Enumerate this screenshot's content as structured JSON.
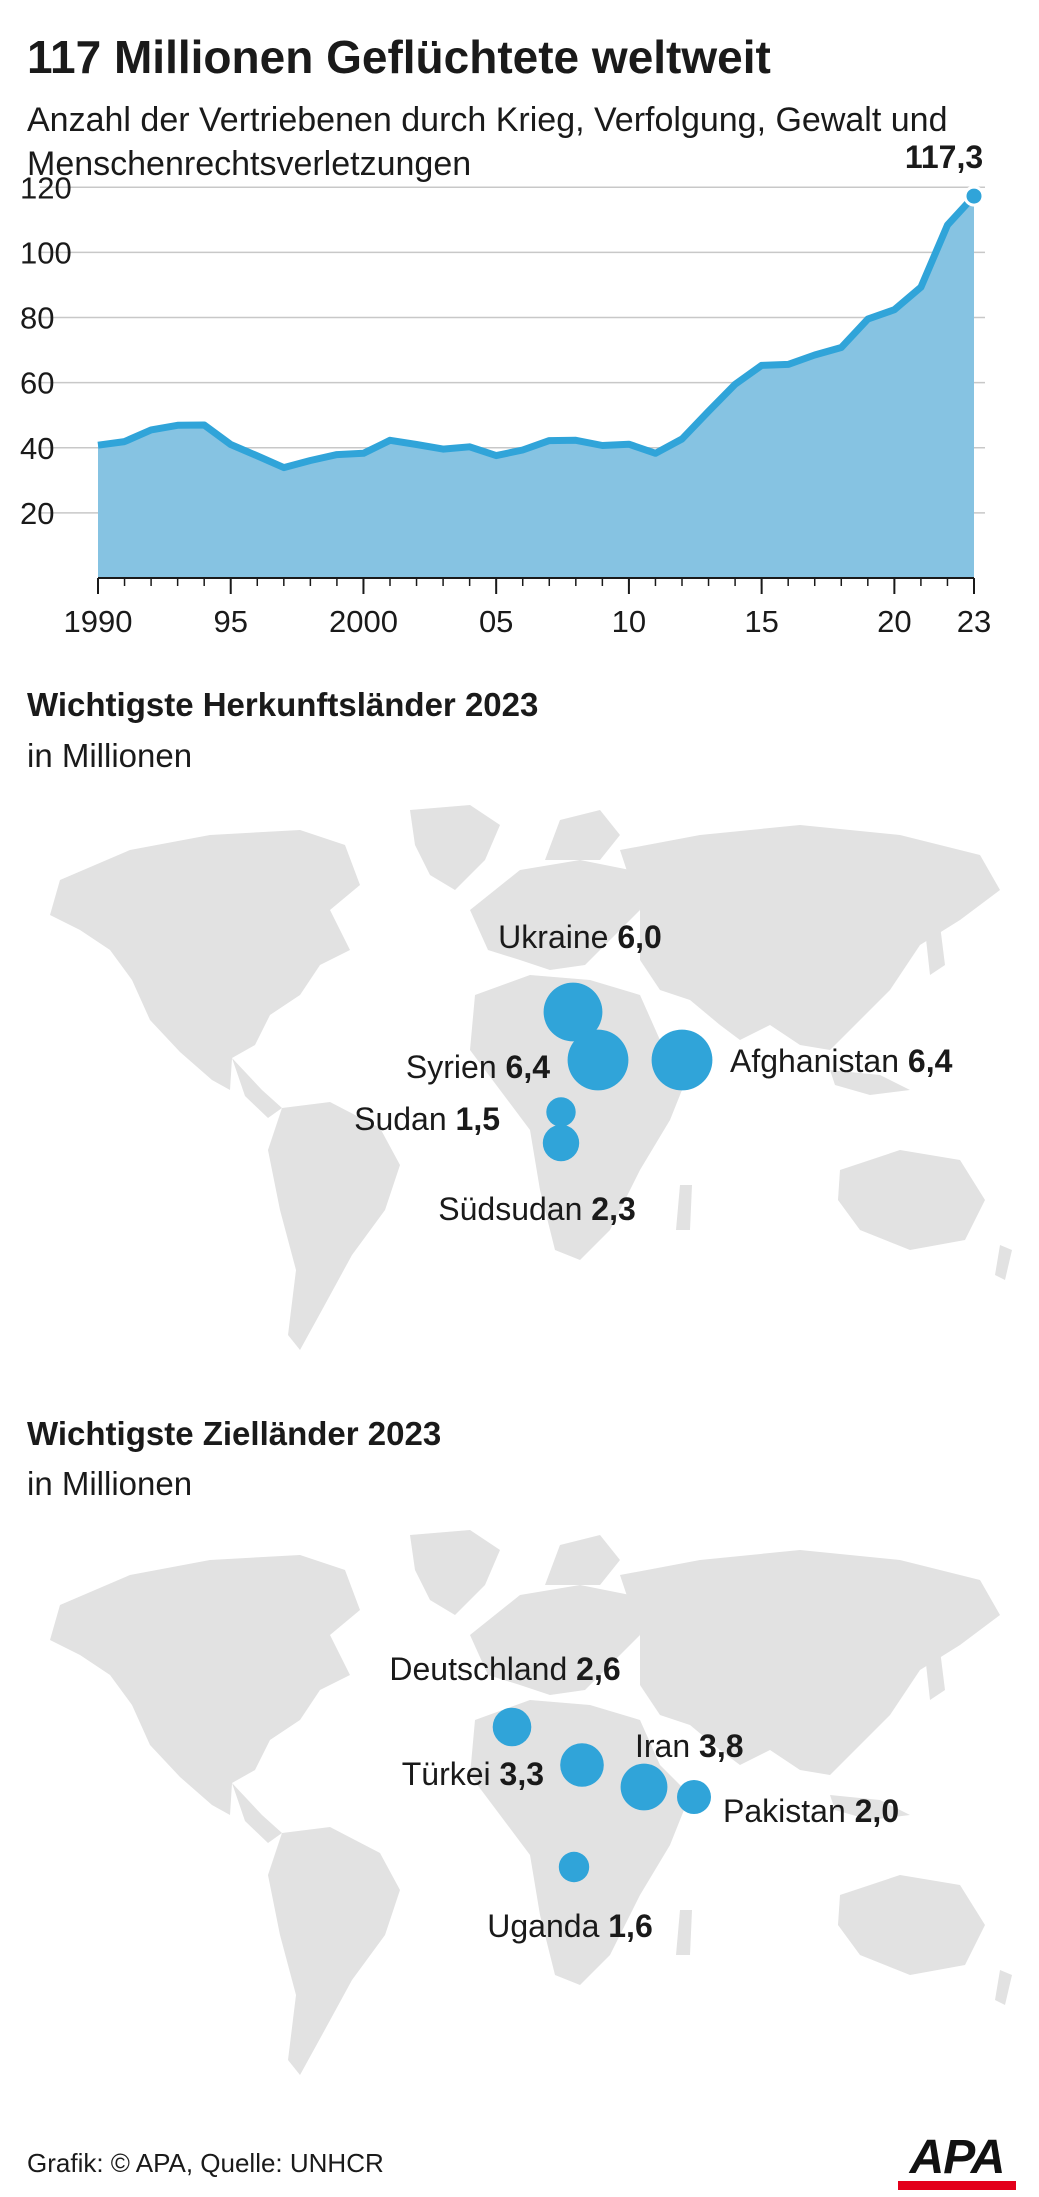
{
  "title": "117 Millionen Geflüchtete weltweit",
  "subtitle": "Anzahl der Vertriebenen durch Krieg, Verfolgung, Gewalt und Menschenrechtsverletzungen",
  "chart_data": [
    {
      "type": "area",
      "title": "117 Millionen Geflüchtete weltweit",
      "subtitle": "Anzahl der Vertriebenen durch Krieg, Verfolgung, Gewalt und Menschenrechtsverletzungen",
      "x": [
        1990,
        1991,
        1992,
        1993,
        1994,
        1995,
        1996,
        1997,
        1998,
        1999,
        2000,
        2001,
        2002,
        2003,
        2004,
        2005,
        2006,
        2007,
        2008,
        2009,
        2010,
        2011,
        2012,
        2013,
        2014,
        2015,
        2016,
        2017,
        2018,
        2019,
        2020,
        2021,
        2022,
        2023
      ],
      "values": [
        40.8,
        41.9,
        45.5,
        46.9,
        47.0,
        41.0,
        37.5,
        33.9,
        36.1,
        37.9,
        38.3,
        42.3,
        41.0,
        39.6,
        40.3,
        37.6,
        39.3,
        42.2,
        42.3,
        40.7,
        41.1,
        38.3,
        42.7,
        51.2,
        59.5,
        65.3,
        65.6,
        68.5,
        70.8,
        79.5,
        82.4,
        89.3,
        108.4,
        117.3
      ],
      "x_tick_labels": [
        {
          "x": 1990,
          "label": "1990"
        },
        {
          "x": 1995,
          "label": "95"
        },
        {
          "x": 2000,
          "label": "2000"
        },
        {
          "x": 2005,
          "label": "05"
        },
        {
          "x": 2010,
          "label": "10"
        },
        {
          "x": 2015,
          "label": "15"
        },
        {
          "x": 2020,
          "label": "20"
        },
        {
          "x": 2023,
          "label": "23"
        }
      ],
      "y_tick_labels": [
        "20",
        "40",
        "60",
        "80",
        "100",
        "120"
      ],
      "ylim": [
        0,
        125
      ],
      "xlim": [
        1990,
        2023
      ],
      "grid": true,
      "highlight": {
        "x": 2023,
        "label": "117,3"
      },
      "colors": {
        "area": "#86c3e2",
        "line": "#30a4d9",
        "grid": "#c8c8c8"
      }
    },
    {
      "type": "bubble-map",
      "title": "Wichtigste Herkunftsländer 2023",
      "unit": "in Millionen",
      "points": [
        {
          "name": "Ukraine",
          "value_label": "6,0",
          "value": 6.0
        },
        {
          "name": "Syrien",
          "value_label": "6,4",
          "value": 6.4
        },
        {
          "name": "Afghanistan",
          "value_label": "6,4",
          "value": 6.4
        },
        {
          "name": "Sudan",
          "value_label": "1,5",
          "value": 1.5
        },
        {
          "name": "Südsudan",
          "value_label": "2,3",
          "value": 2.3
        }
      ],
      "colors": {
        "bubble": "#30a4d9",
        "land": "#e2e2e2"
      }
    },
    {
      "type": "bubble-map",
      "title": "Wichtigste Zielländer 2023",
      "unit": "in Millionen",
      "points": [
        {
          "name": "Deutschland",
          "value_label": "2,6",
          "value": 2.6
        },
        {
          "name": "Iran",
          "value_label": "3,8",
          "value": 3.8
        },
        {
          "name": "Türkei",
          "value_label": "3,3",
          "value": 3.3
        },
        {
          "name": "Pakistan",
          "value_label": "2,0",
          "value": 2.0
        },
        {
          "name": "Uganda",
          "value_label": "1,6",
          "value": 1.6
        }
      ],
      "colors": {
        "bubble": "#30a4d9",
        "land": "#e2e2e2"
      }
    }
  ],
  "footer": "Grafik: © APA, Quelle: UNHCR",
  "logo_text": "APA"
}
